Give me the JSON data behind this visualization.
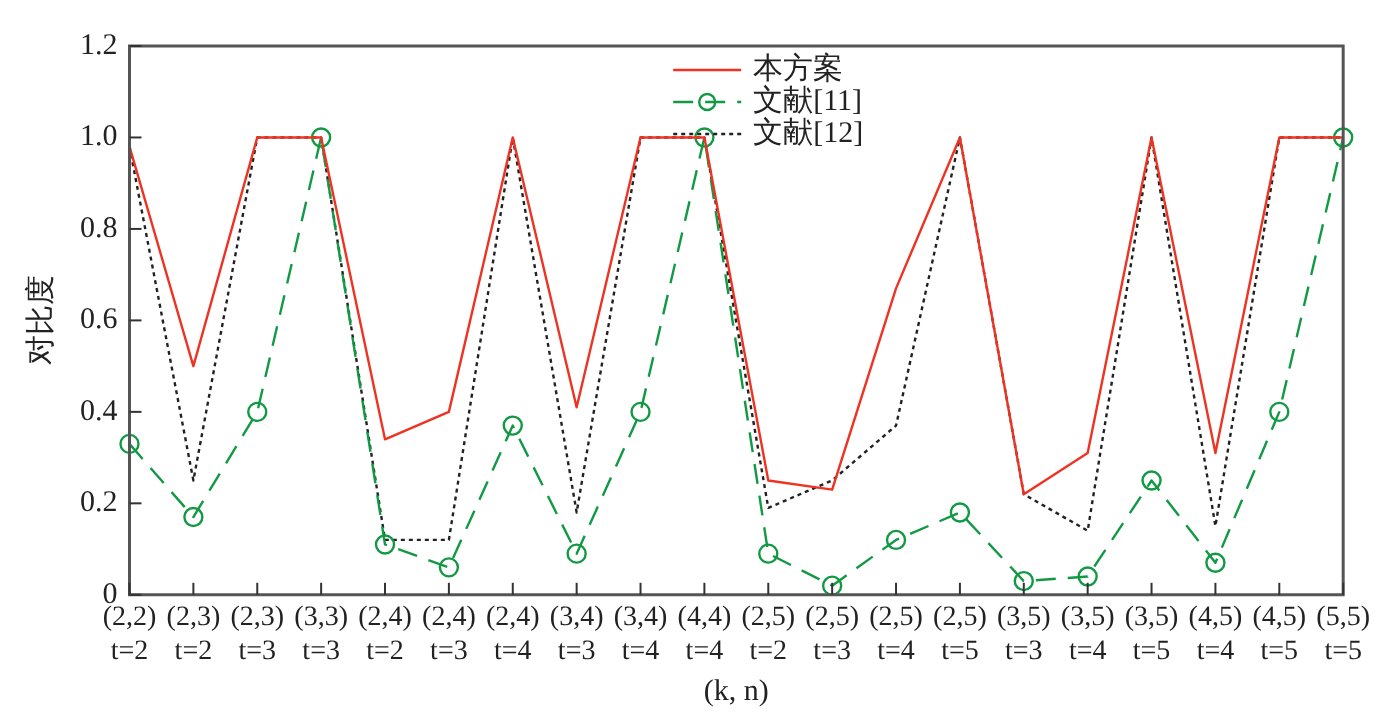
{
  "chart_data": {
    "type": "line",
    "categories": [
      "(2,2)\nt=2",
      "(2,3)\nt=2",
      "(2,3)\nt=3",
      "(3,3)\nt=3",
      "(2,4)\nt=2",
      "(2,4)\nt=3",
      "(2,4)\nt=4",
      "(3,4)\nt=3",
      "(3,4)\nt=4",
      "(4,4)\nt=4",
      "(2,5)\nt=2",
      "(2,5)\nt=3",
      "(2,5)\nt=4",
      "(2,5)\nt=5",
      "(3,5)\nt=3",
      "(3,5)\nt=4",
      "(3,5)\nt=5",
      "(4,5)\nt=4",
      "(4,5)\nt=5",
      "(5,5)\nt=5"
    ],
    "xlabel": "(k, n)",
    "ylabel": "对比度",
    "ylim": [
      0,
      1.2
    ],
    "yticks": [
      0,
      0.2,
      0.4,
      0.6,
      0.8,
      {
        "value": 1,
        "label": "1.0"
      },
      1.2
    ],
    "grid": false,
    "legend": "top right",
    "series": [
      {
        "name": "本方案",
        "color": "#ee3322",
        "line_style": "solid",
        "marker": "none",
        "values": [
          0.98,
          0.5,
          1.0,
          1.0,
          0.34,
          0.4,
          1.0,
          0.41,
          1.0,
          1.0,
          0.25,
          0.23,
          0.67,
          1.0,
          0.22,
          0.31,
          1.0,
          0.31,
          1.0,
          1.0
        ]
      },
      {
        "name": "文献[11]",
        "color": "#119944",
        "line_style": "dashed",
        "marker": "circle",
        "values": [
          0.33,
          0.17,
          0.4,
          1.0,
          0.11,
          0.06,
          0.37,
          0.09,
          0.4,
          1.0,
          0.09,
          0.02,
          0.12,
          0.18,
          0.03,
          0.04,
          0.25,
          0.07,
          0.4,
          1.0
        ]
      },
      {
        "name": "文献[12]",
        "color": "#222222",
        "line_style": "dotted",
        "marker": "none",
        "values": [
          0.98,
          0.25,
          1.0,
          1.0,
          0.12,
          0.12,
          1.0,
          0.18,
          1.0,
          1.0,
          0.19,
          0.25,
          0.37,
          1.0,
          0.22,
          0.14,
          1.0,
          0.15,
          1.0,
          1.0
        ]
      }
    ]
  }
}
